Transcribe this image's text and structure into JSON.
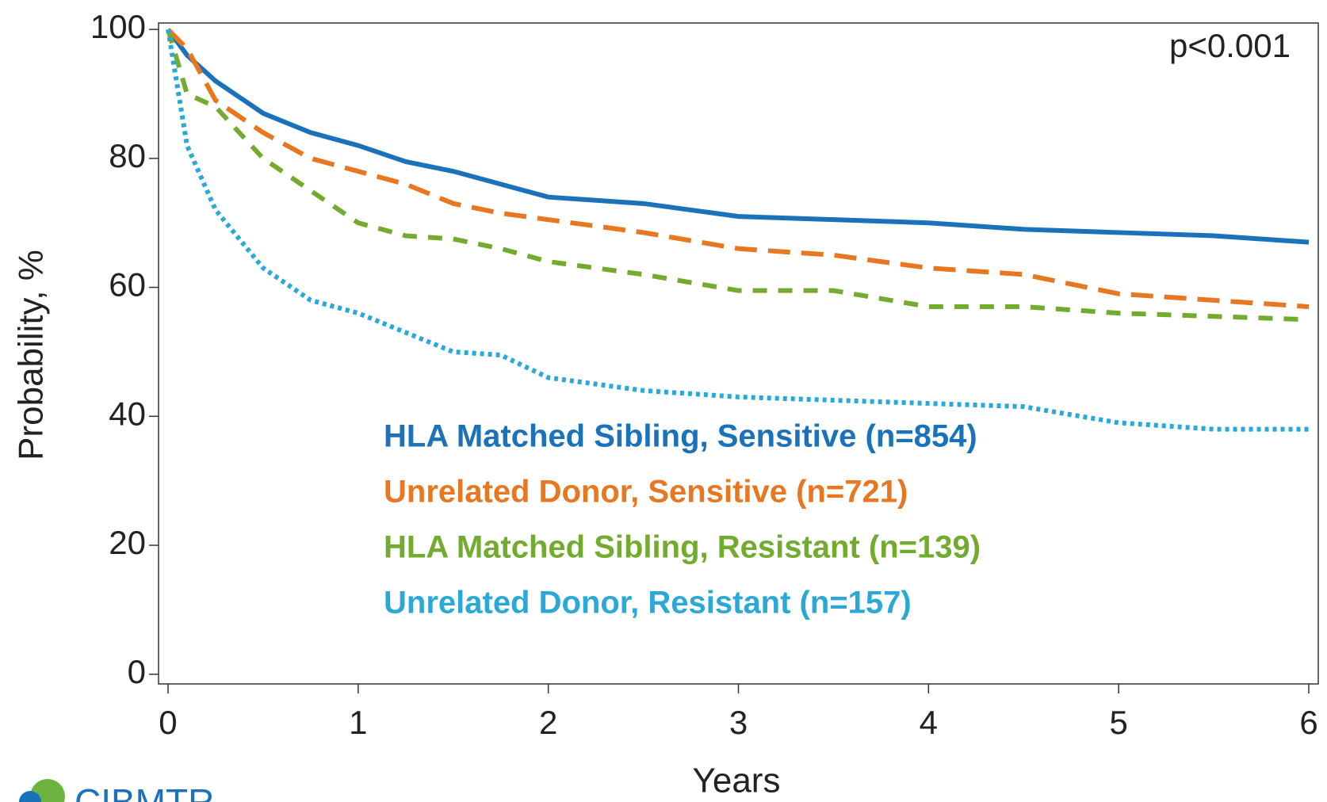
{
  "chart_data": {
    "type": "line",
    "x_label": "Years",
    "y_label": "Probability, %",
    "annotation": "p<0.001",
    "logo_text": "CIBMTR",
    "x": [
      0,
      0.1,
      0.25,
      0.5,
      0.75,
      1,
      1.25,
      1.5,
      1.75,
      2,
      2.5,
      3,
      3.5,
      4,
      4.5,
      5,
      5.5,
      6
    ],
    "series": [
      {
        "name": "HLA Matched Sibling, Sensitive (n=854)",
        "color": "#1a72bb",
        "dash": "solid",
        "values": [
          100,
          96,
          92,
          87,
          84,
          82,
          79.5,
          78,
          76,
          74,
          73,
          71,
          70.5,
          70,
          69,
          68.5,
          68,
          67
        ]
      },
      {
        "name": "Unrelated Donor, Sensitive (n=721)",
        "color": "#e87722",
        "dash": "long-dash",
        "values": [
          100,
          97,
          89,
          84,
          80,
          78,
          76,
          73,
          71.5,
          70.5,
          68.5,
          66,
          65,
          63,
          62,
          59,
          58,
          57
        ]
      },
      {
        "name": "HLA Matched Sibling, Resistant (n=139)",
        "color": "#72ab2e",
        "dash": "dash",
        "values": [
          100,
          90,
          88,
          80,
          75,
          70,
          68,
          67.5,
          66,
          64,
          62,
          59.5,
          59.5,
          57,
          57,
          56,
          55.5,
          55
        ]
      },
      {
        "name": "Unrelated Donor, Resistant (n=157)",
        "color": "#2aa8d8",
        "dash": "dot",
        "values": [
          100,
          82,
          72,
          63,
          58,
          56,
          53,
          50,
          49.5,
          46,
          44,
          43,
          42.5,
          42,
          41.5,
          39,
          38,
          38
        ]
      }
    ],
    "xlim": [
      -0.05,
      6.05
    ],
    "ylim": [
      -1.5,
      101
    ],
    "xticks": [
      0,
      1,
      2,
      3,
      4,
      5,
      6
    ],
    "yticks": [
      0,
      20,
      40,
      60,
      80,
      100
    ],
    "legend": "inside-center"
  }
}
